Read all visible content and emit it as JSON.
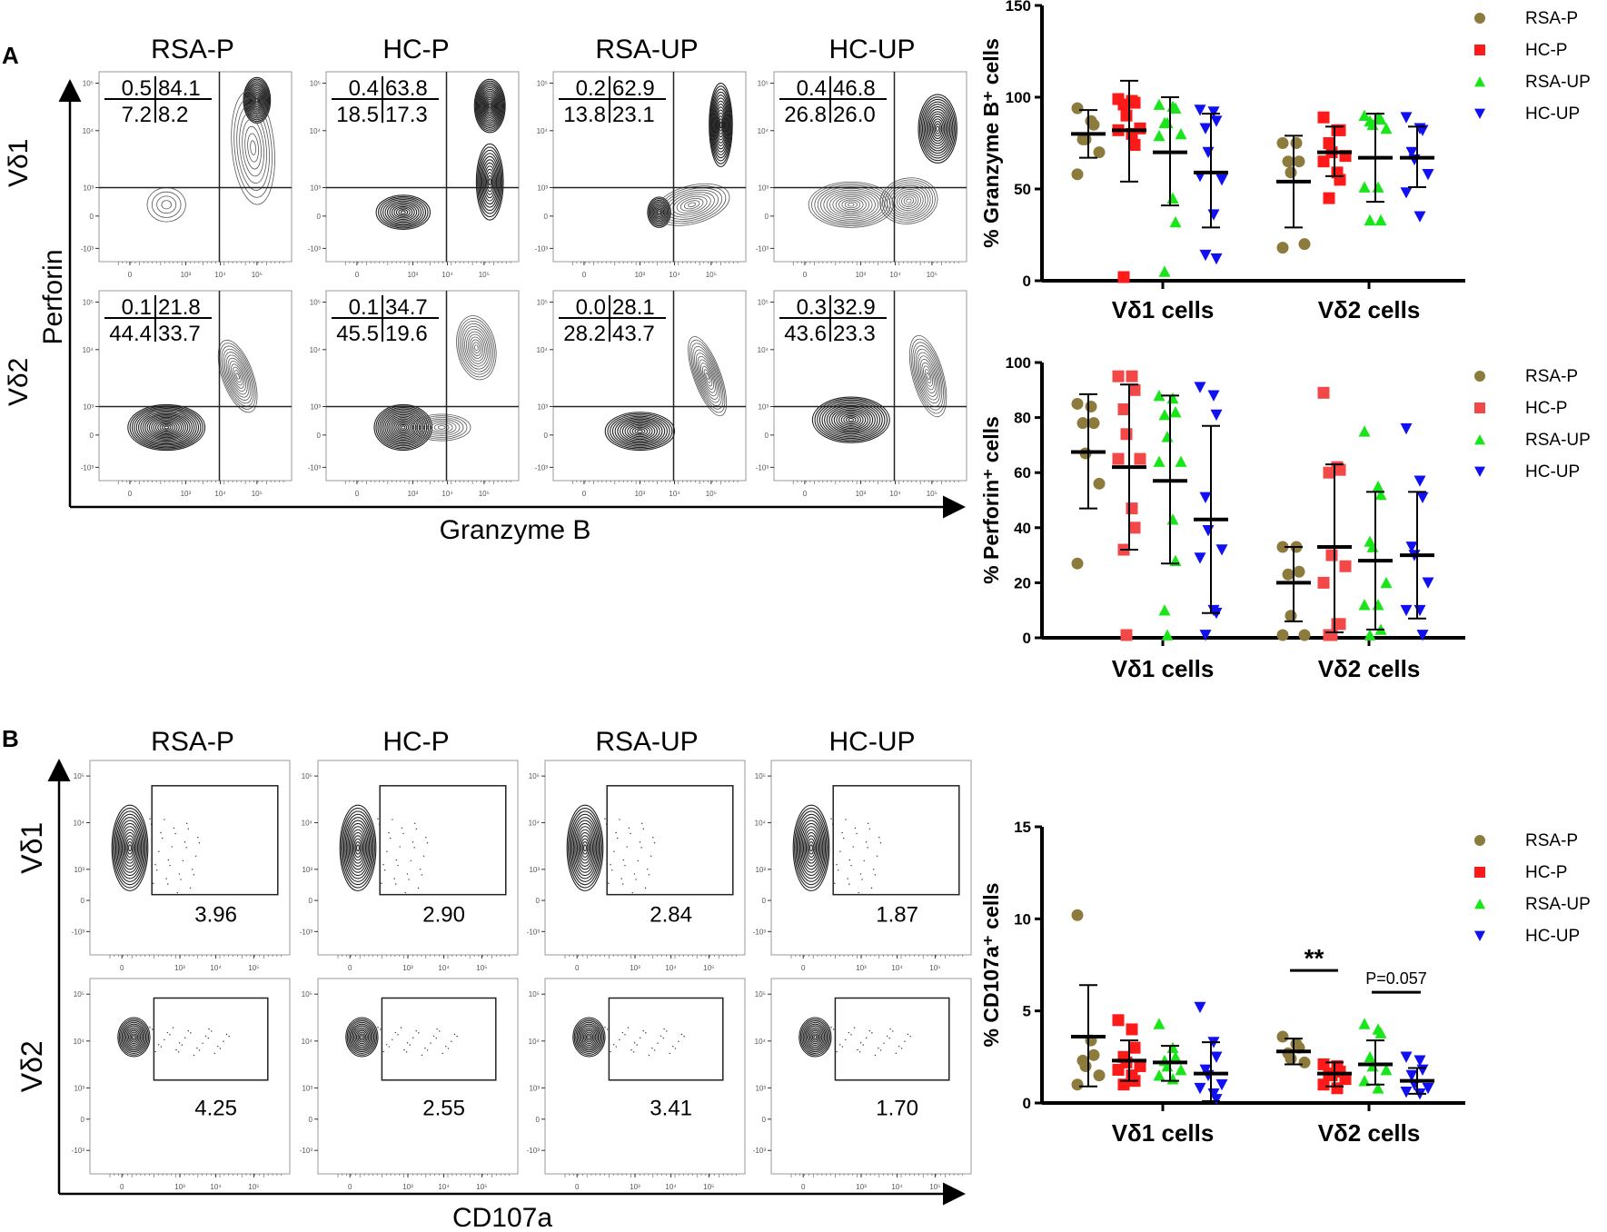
{
  "panel_labels": {
    "a": "A",
    "b": "B"
  },
  "groups": [
    "RSA-P",
    "HC-P",
    "RSA-UP",
    "HC-UP"
  ],
  "colors": {
    "RSA-P": "#8c7b3c",
    "HC-P": "#ff1a1a",
    "HC-P-light": "#f24848",
    "RSA-UP": "#19e619",
    "HC-UP": "#1010f0"
  },
  "flow_a": {
    "x_axis_label": "Granzyme B",
    "y_axis_label": "Perforin",
    "rows": [
      {
        "label": "Vδ1",
        "quadrants": [
          [
            "0.5",
            "84.1",
            "7.2",
            "8.2"
          ],
          [
            "0.4",
            "63.8",
            "18.5",
            "17.3"
          ],
          [
            "0.2",
            "62.9",
            "13.8",
            "23.1"
          ],
          [
            "0.4",
            "46.8",
            "26.8",
            "26.0"
          ]
        ]
      },
      {
        "label": "Vδ2",
        "quadrants": [
          [
            "0.1",
            "21.8",
            "44.4",
            "33.7"
          ],
          [
            "0.1",
            "34.7",
            "45.5",
            "19.6"
          ],
          [
            "0.0",
            "28.1",
            "28.2",
            "43.7"
          ],
          [
            "0.3",
            "32.9",
            "43.6",
            "23.3"
          ]
        ]
      }
    ],
    "x_ticks": [
      "0",
      "10³",
      "10⁴",
      "10⁵"
    ],
    "y_ticks": [
      "10⁵",
      "10⁴",
      "10³",
      "0",
      "-10³"
    ]
  },
  "flow_b": {
    "x_axis_label": "CD107a",
    "rows": [
      {
        "label": "Vδ1",
        "gate_values": [
          "3.96",
          "2.90",
          "2.84",
          "1.87"
        ]
      },
      {
        "label": "Vδ2",
        "gate_values": [
          "4.25",
          "2.55",
          "3.41",
          "1.70"
        ]
      }
    ],
    "x_ticks": [
      "0",
      "10³",
      "10⁴",
      "10⁵"
    ],
    "y_ticks": [
      "10⁵",
      "10⁴",
      "10³",
      "0",
      "-10³"
    ]
  },
  "chart_data": [
    {
      "type": "scatter",
      "title": "",
      "ylabel": "% Granzyme B⁺ cells",
      "ylim": [
        0,
        150
      ],
      "yticks": [
        "0",
        "50",
        "100",
        "150"
      ],
      "categories": [
        "Vδ1 cells",
        "Vδ2 cells"
      ],
      "legend": [
        "RSA-P",
        "HC-P",
        "RSA-UP",
        "HC-UP"
      ],
      "legend_placement": "right",
      "series": [
        {
          "name": "RSA-P",
          "groups": [
            {
              "mean": 80,
              "sd_low": 67,
              "sd_high": 93,
              "points": [
                94,
                87,
                85,
                77,
                77,
                70,
                58
              ]
            },
            {
              "mean": 54,
              "sd_low": 29,
              "sd_high": 79,
              "points": [
                75,
                75,
                65,
                65,
                59,
                20,
                18
              ]
            }
          ]
        },
        {
          "name": "HC-P",
          "groups": [
            {
              "mean": 82,
              "sd_low": 54,
              "sd_high": 109,
              "points": [
                99,
                98,
                97,
                96,
                90,
                83,
                82,
                80,
                74,
                2
              ]
            },
            {
              "mean": 70,
              "sd_low": 57,
              "sd_high": 84,
              "points": [
                89,
                82,
                82,
                75,
                70,
                68,
                65,
                59,
                55,
                45
              ]
            }
          ]
        },
        {
          "name": "RSA-UP",
          "groups": [
            {
              "mean": 70,
              "sd_low": 41,
              "sd_high": 100,
              "points": [
                96,
                95,
                94,
                86,
                86,
                80,
                79,
                45,
                32,
                5
              ]
            },
            {
              "mean": 67,
              "sd_low": 43,
              "sd_high": 91,
              "points": [
                90,
                89,
                88,
                87,
                85,
                83,
                51,
                51,
                33,
                33
              ]
            }
          ]
        },
        {
          "name": "HC-UP",
          "groups": [
            {
              "mean": 59,
              "sd_low": 29,
              "sd_high": 91,
              "points": [
                93,
                92,
                87,
                83,
                70,
                55,
                57,
                36,
                12,
                14
              ]
            },
            {
              "mean": 67,
              "sd_low": 51,
              "sd_high": 84,
              "points": [
                89,
                83,
                82,
                70,
                66,
                58,
                48,
                35
              ]
            }
          ]
        }
      ]
    },
    {
      "type": "scatter",
      "title": "",
      "ylabel": "% Perforin⁺ cells",
      "ylim": [
        0,
        100
      ],
      "yticks": [
        "0",
        "20",
        "40",
        "60",
        "80",
        "100"
      ],
      "categories": [
        "Vδ1 cells",
        "Vδ2 cells"
      ],
      "legend": [
        "RSA-P",
        "HC-P",
        "RSA-UP",
        "HC-UP"
      ],
      "legend_placement": "right",
      "series": [
        {
          "name": "RSA-P",
          "groups": [
            {
              "mean": 67.5,
              "sd_low": 47,
              "sd_high": 88.5,
              "points": [
                85,
                84,
                78,
                78,
                67,
                56,
                27
              ]
            },
            {
              "mean": 20,
              "sd_low": 6,
              "sd_high": 33,
              "points": [
                33,
                33,
                24,
                23,
                8,
                1,
                1
              ]
            }
          ]
        },
        {
          "name": "HC-P",
          "groups": [
            {
              "mean": 62,
              "sd_low": 32,
              "sd_high": 92,
              "points": [
                95,
                95,
                90,
                83,
                74,
                65,
                65,
                47,
                40,
                32,
                1
              ]
            },
            {
              "mean": 33,
              "sd_low": 2,
              "sd_high": 63,
              "points": [
                89,
                62,
                61,
                60,
                30,
                26,
                20,
                5,
                5,
                1,
                1
              ]
            }
          ]
        },
        {
          "name": "RSA-UP",
          "groups": [
            {
              "mean": 57,
              "sd_low": 27,
              "sd_high": 88,
              "points": [
                88,
                87,
                82,
                81,
                73,
                64,
                64,
                43,
                28,
                10,
                1
              ]
            },
            {
              "mean": 28,
              "sd_low": 3,
              "sd_high": 53,
              "points": [
                75,
                55,
                52,
                35,
                33,
                20,
                12,
                12,
                3,
                1
              ]
            }
          ]
        },
        {
          "name": "HC-UP",
          "groups": [
            {
              "mean": 43,
              "sd_low": 9,
              "sd_high": 77,
              "points": [
                91,
                88,
                81,
                51,
                39,
                32,
                29,
                10,
                9,
                1
              ]
            },
            {
              "mean": 30,
              "sd_low": 7,
              "sd_high": 53,
              "points": [
                76,
                57,
                51,
                33,
                30,
                20,
                10,
                10,
                1
              ]
            }
          ]
        }
      ]
    },
    {
      "type": "scatter",
      "title": "",
      "ylabel": "% CD107a⁺ cells",
      "ylim": [
        0,
        15
      ],
      "yticks": [
        "0",
        "5",
        "10",
        "15"
      ],
      "categories": [
        "Vδ1 cells",
        "Vδ2 cells"
      ],
      "legend": [
        "RSA-P",
        "HC-P",
        "RSA-UP",
        "HC-UP"
      ],
      "legend_placement": "right",
      "annotations": [
        {
          "text": "**",
          "category": "Vδ2 cells",
          "from": "RSA-P",
          "to": "HC-P",
          "y": 7.2
        },
        {
          "text": "P=0.057",
          "category": "Vδ2 cells",
          "from": "RSA-UP",
          "to": "HC-UP",
          "y": 6.9
        }
      ],
      "series": [
        {
          "name": "RSA-P",
          "groups": [
            {
              "mean": 3.6,
              "sd_low": 0.9,
              "sd_high": 6.4,
              "points": [
                10.2,
                3.4,
                2.6,
                2.3,
                2.0,
                1.5,
                1.0
              ]
            },
            {
              "mean": 2.8,
              "sd_low": 2.1,
              "sd_high": 3.5,
              "points": [
                3.6,
                3.2,
                3.0,
                2.7,
                2.4,
                2.2
              ]
            }
          ]
        },
        {
          "name": "HC-P",
          "groups": [
            {
              "mean": 2.3,
              "sd_low": 1.2,
              "sd_high": 3.4,
              "points": [
                4.5,
                4.0,
                3.0,
                2.5,
                2.2,
                2.0,
                1.8,
                1.5,
                1.2,
                1.0
              ]
            },
            {
              "mean": 1.6,
              "sd_low": 0.9,
              "sd_high": 2.2,
              "points": [
                2.1,
                2.0,
                1.7,
                1.6,
                1.5,
                1.3,
                1.0,
                0.8
              ]
            }
          ]
        },
        {
          "name": "RSA-UP",
          "groups": [
            {
              "mean": 2.2,
              "sd_low": 1.2,
              "sd_high": 3.1,
              "points": [
                4.3,
                3.0,
                2.5,
                2.3,
                2.0,
                1.8,
                1.5,
                1.3
              ]
            },
            {
              "mean": 2.1,
              "sd_low": 1.0,
              "sd_high": 3.4,
              "points": [
                4.3,
                4.0,
                3.8,
                2.5,
                2.0,
                1.8,
                1.2,
                0.8
              ]
            }
          ]
        },
        {
          "name": "HC-UP",
          "groups": [
            {
              "mean": 1.6,
              "sd_low": 0.1,
              "sd_high": 3.3,
              "points": [
                5.2,
                3.3,
                2.5,
                1.8,
                1.5,
                1.0,
                0.8,
                0.5,
                0.2
              ]
            },
            {
              "mean": 1.2,
              "sd_low": 0.5,
              "sd_high": 1.9,
              "points": [
                2.5,
                2.3,
                1.8,
                1.5,
                1.0,
                0.8,
                0.6,
                0.5
              ]
            }
          ]
        }
      ]
    }
  ]
}
